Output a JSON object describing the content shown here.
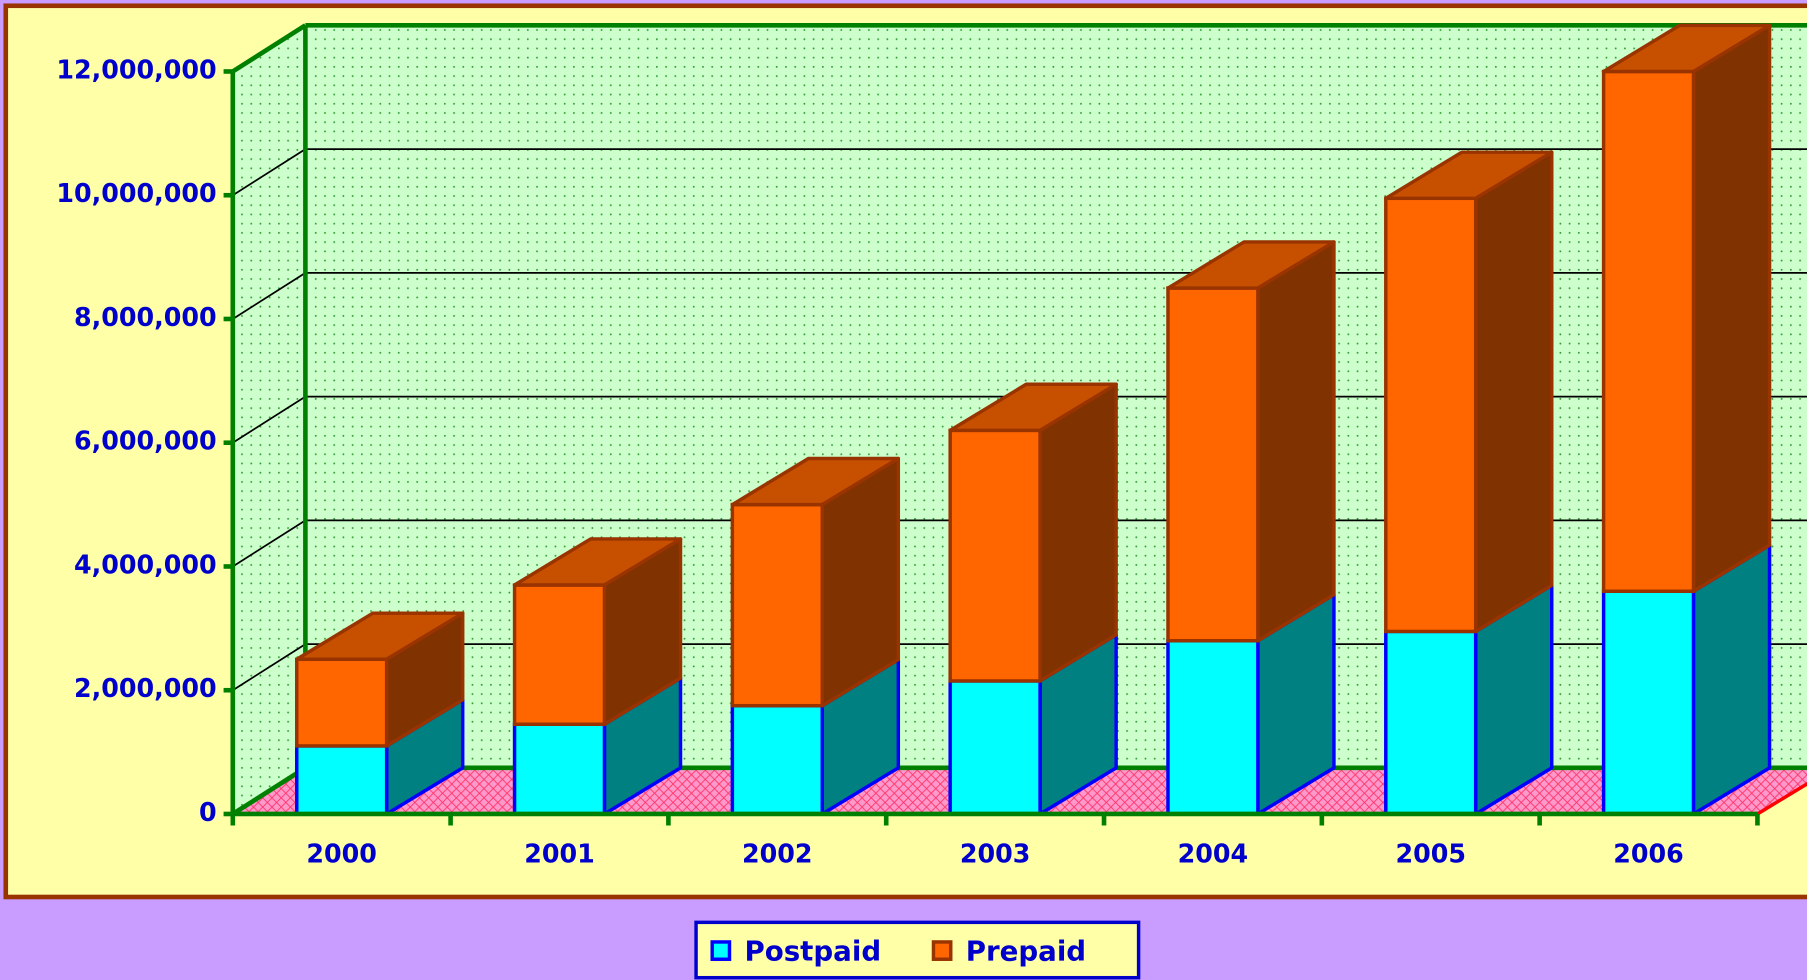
{
  "chart_data": {
    "type": "stacked_bar_3d",
    "categories": [
      "2000",
      "2001",
      "2002",
      "2003",
      "2004",
      "2005",
      "2006"
    ],
    "series": [
      {
        "name": "Postpaid",
        "color": "#00ffff",
        "values": [
          1100000,
          1450000,
          1750000,
          2150000,
          2800000,
          2950000,
          3600000
        ]
      },
      {
        "name": "Prepaid",
        "color": "#ff6600",
        "values": [
          1400000,
          2250000,
          3250000,
          4050000,
          5700000,
          7000000,
          8400000
        ]
      }
    ],
    "ylim": [
      0,
      12000000
    ],
    "yticks": [
      0,
      {
        "value": 2000000,
        "label": "2,000,000"
      },
      {
        "value": 4000000,
        "label": "4,000,000"
      },
      {
        "value": 6000000,
        "label": "6,000,000"
      },
      {
        "value": 8000000,
        "label": "8,000,000"
      },
      {
        "value": 10000000,
        "label": "10,000,000"
      },
      {
        "value": 12000000,
        "label": "12,000,000"
      }
    ],
    "grid": true,
    "legend": "bottom"
  }
}
